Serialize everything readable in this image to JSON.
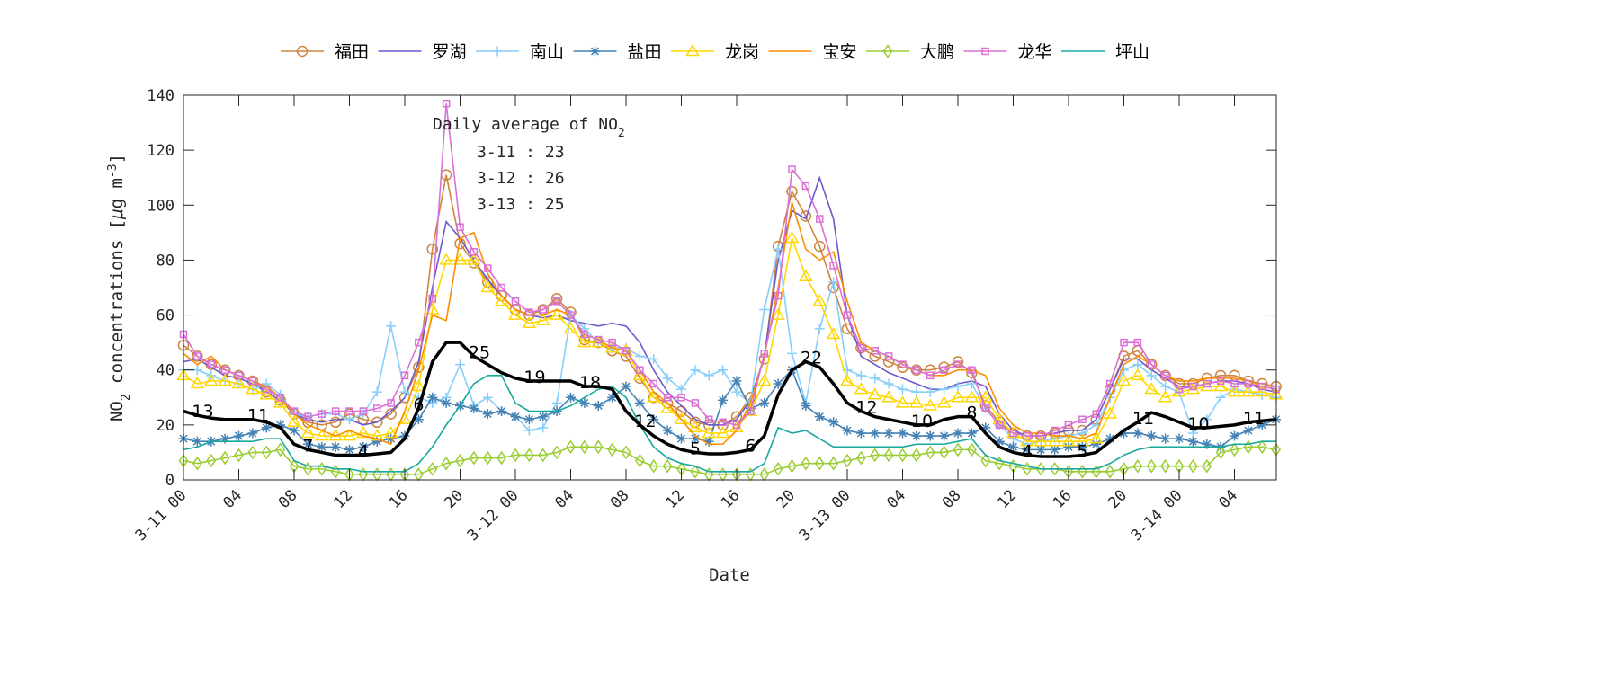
{
  "chart_data": {
    "type": "line",
    "xlabel": "Date",
    "ylabel": "NO2 concentrations [μg m-3]",
    "ylabel_parts": {
      "species": "NO",
      "species_sub": "2",
      "rest": " concentrations [",
      "mu": "μ",
      "unit": "g m",
      "exp": "-3",
      "close": "]"
    },
    "ylim": [
      0,
      140
    ],
    "yticks": [
      0,
      20,
      40,
      60,
      80,
      100,
      120,
      140
    ],
    "x_start": "3-11 00",
    "x_step_hours": 1,
    "xticks": [
      "3-11 00",
      "04",
      "08",
      "12",
      "16",
      "20",
      "3-12 00",
      "04",
      "08",
      "12",
      "16",
      "20",
      "3-13 00",
      "04",
      "08",
      "12",
      "16",
      "20",
      "3-14 00",
      "04"
    ],
    "grid": false,
    "legend_position": "top",
    "series": [
      {
        "name": "福田",
        "color": "#cd853f",
        "marker": "circle",
        "values": [
          49,
          45,
          42,
          40,
          38,
          36,
          32,
          29,
          24,
          21,
          20,
          21,
          24,
          22,
          21,
          24,
          30,
          41,
          84,
          111,
          86,
          79,
          72,
          67,
          62,
          60,
          62,
          66,
          61,
          51,
          50,
          47,
          45,
          37,
          30,
          28,
          25,
          21,
          20,
          20,
          23,
          30,
          44,
          85,
          105,
          96,
          85,
          70,
          55,
          48,
          45,
          43,
          41,
          40,
          40,
          41,
          43,
          39,
          27,
          21,
          17,
          16,
          16,
          17,
          18,
          18,
          22,
          33,
          45,
          47,
          42,
          38,
          35,
          35,
          37,
          38,
          38,
          36,
          35,
          34
        ]
      },
      {
        "name": "罗湖",
        "color": "#6a5acd",
        "marker": "none",
        "values": [
          43,
          44,
          41,
          38,
          37,
          35,
          32,
          29,
          24,
          22,
          21,
          22,
          22,
          20,
          21,
          25,
          30,
          43,
          70,
          94,
          88,
          80,
          73,
          67,
          62,
          60,
          59,
          60,
          58,
          57,
          56,
          57,
          56,
          50,
          40,
          32,
          27,
          22,
          20,
          20,
          22,
          29,
          45,
          80,
          98,
          95,
          110,
          95,
          60,
          45,
          42,
          39,
          37,
          35,
          33,
          33,
          35,
          36,
          34,
          24,
          18,
          16,
          16,
          17,
          18,
          18,
          22,
          33,
          44,
          44,
          40,
          37,
          34,
          34,
          35,
          36,
          36,
          35,
          33,
          32
        ]
      },
      {
        "name": "南山",
        "color": "#87cefa",
        "marker": "plus",
        "values": [
          40,
          40,
          38,
          36,
          35,
          33,
          35,
          31,
          24,
          23,
          24,
          24,
          22,
          24,
          32,
          56,
          32,
          30,
          28,
          30,
          42,
          27,
          30,
          25,
          23,
          18,
          19,
          28,
          60,
          55,
          50,
          48,
          48,
          45,
          44,
          37,
          33,
          40,
          38,
          40,
          32,
          28,
          62,
          84,
          46,
          28,
          55,
          72,
          40,
          38,
          37,
          35,
          33,
          32,
          32,
          33,
          34,
          35,
          26,
          20,
          15,
          13,
          14,
          15,
          16,
          17,
          20,
          30,
          40,
          42,
          38,
          34,
          32,
          17,
          22,
          30,
          33,
          32,
          31,
          30
        ]
      },
      {
        "name": "盐田",
        "color": "#4682b4",
        "marker": "asterisk",
        "values": [
          15,
          14,
          14,
          15,
          16,
          17,
          19,
          20,
          18,
          13,
          12,
          12,
          11,
          12,
          14,
          15,
          16,
          22,
          30,
          28,
          27,
          26,
          24,
          25,
          23,
          22,
          23,
          25,
          30,
          28,
          27,
          30,
          34,
          28,
          22,
          18,
          15,
          15,
          14,
          29,
          36,
          26,
          28,
          35,
          40,
          27,
          23,
          21,
          18,
          17,
          17,
          17,
          17,
          16,
          16,
          16,
          17,
          17,
          19,
          14,
          12,
          11,
          11,
          11,
          12,
          12,
          13,
          15,
          17,
          17,
          16,
          15,
          15,
          14,
          13,
          12,
          16,
          18,
          20,
          22
        ]
      },
      {
        "name": "龙岗",
        "color": "#ffd700",
        "marker": "triangle",
        "values": [
          38,
          35,
          36,
          36,
          35,
          33,
          31,
          28,
          21,
          17,
          16,
          16,
          16,
          17,
          16,
          17,
          22,
          34,
          62,
          80,
          80,
          80,
          70,
          65,
          60,
          57,
          58,
          60,
          55,
          50,
          50,
          48,
          47,
          38,
          30,
          26,
          22,
          19,
          17,
          17,
          19,
          25,
          36,
          60,
          88,
          74,
          65,
          53,
          36,
          33,
          31,
          30,
          28,
          28,
          27,
          28,
          30,
          30,
          30,
          22,
          17,
          14,
          14,
          14,
          14,
          14,
          15,
          24,
          36,
          38,
          33,
          30,
          32,
          33,
          34,
          34,
          32,
          32,
          32,
          31
        ]
      },
      {
        "name": "宝安",
        "color": "#ff8c00",
        "marker": "none",
        "values": [
          46,
          42,
          45,
          40,
          38,
          36,
          34,
          30,
          24,
          20,
          18,
          16,
          18,
          16,
          15,
          13,
          25,
          40,
          60,
          58,
          88,
          90,
          75,
          67,
          62,
          60,
          60,
          62,
          60,
          53,
          51,
          48,
          47,
          40,
          32,
          28,
          22,
          16,
          13,
          13,
          18,
          28,
          45,
          70,
          101,
          84,
          80,
          83,
          65,
          50,
          47,
          45,
          42,
          40,
          38,
          38,
          40,
          40,
          38,
          26,
          20,
          17,
          17,
          16,
          16,
          15,
          17,
          30,
          42,
          45,
          42,
          38,
          36,
          36,
          37,
          37,
          37,
          36,
          34,
          33
        ]
      },
      {
        "name": "大鹏",
        "color": "#9acd32",
        "marker": "diamond",
        "values": [
          7,
          6,
          7,
          8,
          9,
          10,
          10,
          11,
          5,
          4,
          4,
          3,
          2,
          2,
          2,
          2,
          2,
          2,
          4,
          6,
          7,
          8,
          8,
          8,
          9,
          9,
          9,
          10,
          12,
          12,
          12,
          11,
          10,
          7,
          5,
          5,
          4,
          3,
          2,
          2,
          2,
          2,
          2,
          4,
          5,
          6,
          6,
          6,
          7,
          8,
          9,
          9,
          9,
          9,
          10,
          10,
          11,
          11,
          7,
          6,
          5,
          4,
          4,
          4,
          3,
          3,
          3,
          3,
          4,
          5,
          5,
          5,
          5,
          5,
          5,
          10,
          11,
          12,
          12,
          11
        ]
      },
      {
        "name": "龙华",
        "color": "#da70d6",
        "marker": "square",
        "values": [
          53,
          45,
          42,
          40,
          38,
          36,
          33,
          30,
          25,
          23,
          24,
          25,
          25,
          25,
          26,
          28,
          38,
          50,
          66,
          137,
          92,
          83,
          77,
          70,
          65,
          61,
          62,
          65,
          60,
          53,
          51,
          50,
          47,
          40,
          35,
          30,
          30,
          28,
          22,
          21,
          20,
          25,
          46,
          67,
          113,
          107,
          95,
          78,
          60,
          48,
          47,
          45,
          42,
          40,
          38,
          40,
          42,
          40,
          26,
          20,
          17,
          16,
          16,
          18,
          20,
          22,
          24,
          35,
          50,
          50,
          42,
          38,
          33,
          34,
          35,
          36,
          35,
          35,
          34,
          33
        ]
      },
      {
        "name": "坪山",
        "color": "#17a89e",
        "marker": "none",
        "values": [
          11,
          12,
          14,
          14,
          14,
          14,
          15,
          15,
          7,
          5,
          5,
          4,
          4,
          3,
          3,
          3,
          3,
          6,
          12,
          20,
          27,
          35,
          38,
          38,
          28,
          25,
          25,
          25,
          27,
          30,
          33,
          34,
          30,
          20,
          12,
          8,
          6,
          5,
          3,
          3,
          3,
          3,
          6,
          19,
          17,
          18,
          15,
          12,
          12,
          12,
          12,
          12,
          12,
          13,
          13,
          13,
          14,
          15,
          9,
          7,
          6,
          5,
          4,
          4,
          4,
          4,
          4,
          6,
          9,
          11,
          12,
          12,
          12,
          12,
          12,
          12,
          13,
          13,
          14,
          14
        ]
      }
    ],
    "average": {
      "color": "#000000",
      "values": [
        25,
        23.5,
        22.5,
        22,
        22,
        22,
        21,
        19,
        13,
        11,
        10,
        9,
        9,
        9,
        9.5,
        10,
        15,
        26,
        43,
        50,
        50,
        45,
        42,
        39,
        37,
        36,
        36,
        36,
        36,
        34,
        34,
        33,
        25,
        20,
        16,
        13,
        11,
        10,
        9.5,
        9.5,
        10,
        11,
        16,
        31,
        40,
        43,
        41,
        35,
        28,
        25,
        23,
        22,
        21,
        20,
        20,
        22,
        23,
        23,
        17,
        12,
        10,
        9,
        8.5,
        8.5,
        8.5,
        9,
        10,
        14,
        18,
        21,
        24.5,
        23,
        21,
        19,
        19,
        19.5,
        20,
        21,
        21.5,
        22
      ],
      "labels": [
        {
          "hour": 1,
          "text": "13"
        },
        {
          "hour": 5,
          "text": "11"
        },
        {
          "hour": 9,
          "text": "7"
        },
        {
          "hour": 13,
          "text": "4"
        },
        {
          "hour": 17,
          "text": "6"
        },
        {
          "hour": 21,
          "text": "25"
        },
        {
          "hour": 25,
          "text": "19"
        },
        {
          "hour": 29,
          "text": "18"
        },
        {
          "hour": 33,
          "text": "12"
        },
        {
          "hour": 37,
          "text": "5"
        },
        {
          "hour": 41,
          "text": "6"
        },
        {
          "hour": 45,
          "text": "22"
        },
        {
          "hour": 49,
          "text": "12"
        },
        {
          "hour": 53,
          "text": "10"
        },
        {
          "hour": 57,
          "text": "8"
        },
        {
          "hour": 61,
          "text": "4"
        },
        {
          "hour": 65,
          "text": "5"
        },
        {
          "hour": 69,
          "text": "11"
        },
        {
          "hour": 73,
          "text": "10"
        },
        {
          "hour": 77,
          "text": "11"
        }
      ]
    },
    "annotation": {
      "title": "Daily average of NO",
      "title_sub": "2",
      "lines": [
        "3-11 : 23",
        "3-12 : 26",
        "3-13 : 25"
      ]
    }
  }
}
